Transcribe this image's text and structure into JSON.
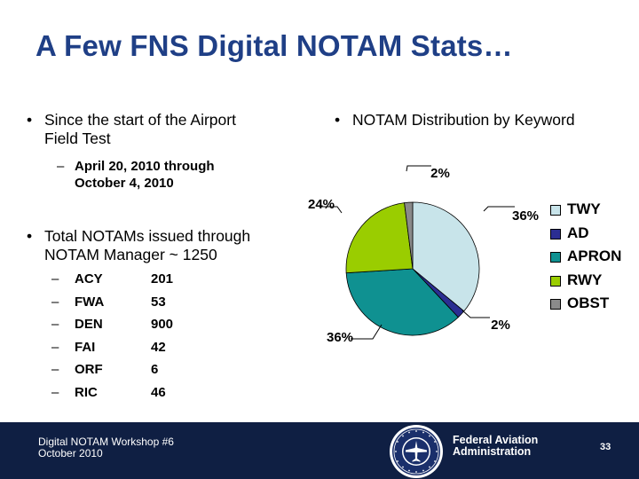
{
  "slide": {
    "title": "A Few FNS Digital NOTAM Stats…",
    "left_bullet_1_line1": "Since the start of the Airport",
    "left_bullet_1_line2": "Field Test",
    "date_range_line1": "April 20, 2010 through",
    "date_range_line2": "October 4, 2010",
    "left_bullet_2_line1": "Total NOTAMs issued through",
    "left_bullet_2_line2": "NOTAM Manager ~ 1250",
    "right_bullet": "NOTAM Distribution by Keyword",
    "bullet_glyph": "•",
    "dash_glyph": "–",
    "airports": [
      {
        "code": "ACY",
        "count": "201"
      },
      {
        "code": "FWA",
        "count": "53"
      },
      {
        "code": "DEN",
        "count": "900"
      },
      {
        "code": "FAI",
        "count": "42"
      },
      {
        "code": "ORF",
        "count": "6"
      },
      {
        "code": "RIC",
        "count": "46"
      }
    ]
  },
  "chart_data": {
    "type": "pie",
    "categories": [
      "TWY",
      "AD",
      "APRON",
      "RWY",
      "OBST"
    ],
    "values": [
      36,
      2,
      36,
      24,
      2
    ],
    "labels": [
      "36%",
      "2%",
      "36%",
      "24%",
      "2%"
    ],
    "colors": [
      "#c8e4ea",
      "#2b2e92",
      "#0f9191",
      "#9acd00",
      "#8a8a8a"
    ],
    "legend_position": "right"
  },
  "footer": {
    "event_line1": "Digital NOTAM Workshop #6",
    "event_line2": "October 2010",
    "org_line1": "Federal Aviation",
    "org_line2": "Administration",
    "slide_number": "33",
    "background": "#0f1f43"
  },
  "colors": {
    "title": "#1f3f86"
  }
}
